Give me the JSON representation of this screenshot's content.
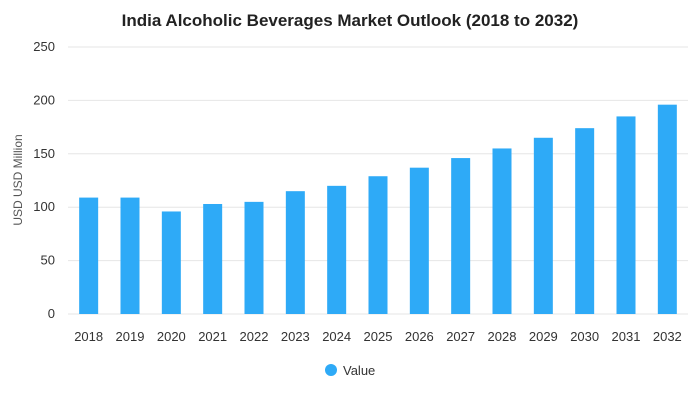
{
  "chart_data": {
    "type": "bar",
    "title": "India Alcoholic Beverages Market Outlook (2018 to 2032)",
    "xlabel": "",
    "ylabel": "USD USD Million",
    "categories": [
      "2018",
      "2019",
      "2020",
      "2021",
      "2022",
      "2023",
      "2024",
      "2025",
      "2026",
      "2027",
      "2028",
      "2029",
      "2030",
      "2031",
      "2032"
    ],
    "series": [
      {
        "name": "Value",
        "values": [
          109,
          109,
          96,
          103,
          105,
          115,
          120,
          129,
          137,
          146,
          155,
          165,
          174,
          185,
          196
        ],
        "color": "#2eaaf7"
      }
    ],
    "ylim": [
      0,
      250
    ],
    "yticks": [
      "0",
      "50",
      "100",
      "150",
      "200",
      "250"
    ],
    "grid": true,
    "legend_position": "bottom"
  },
  "colors": {
    "bar": "#2eaaf7",
    "grid": "#e6e6e6",
    "text": "#333333",
    "title": "#222222"
  }
}
